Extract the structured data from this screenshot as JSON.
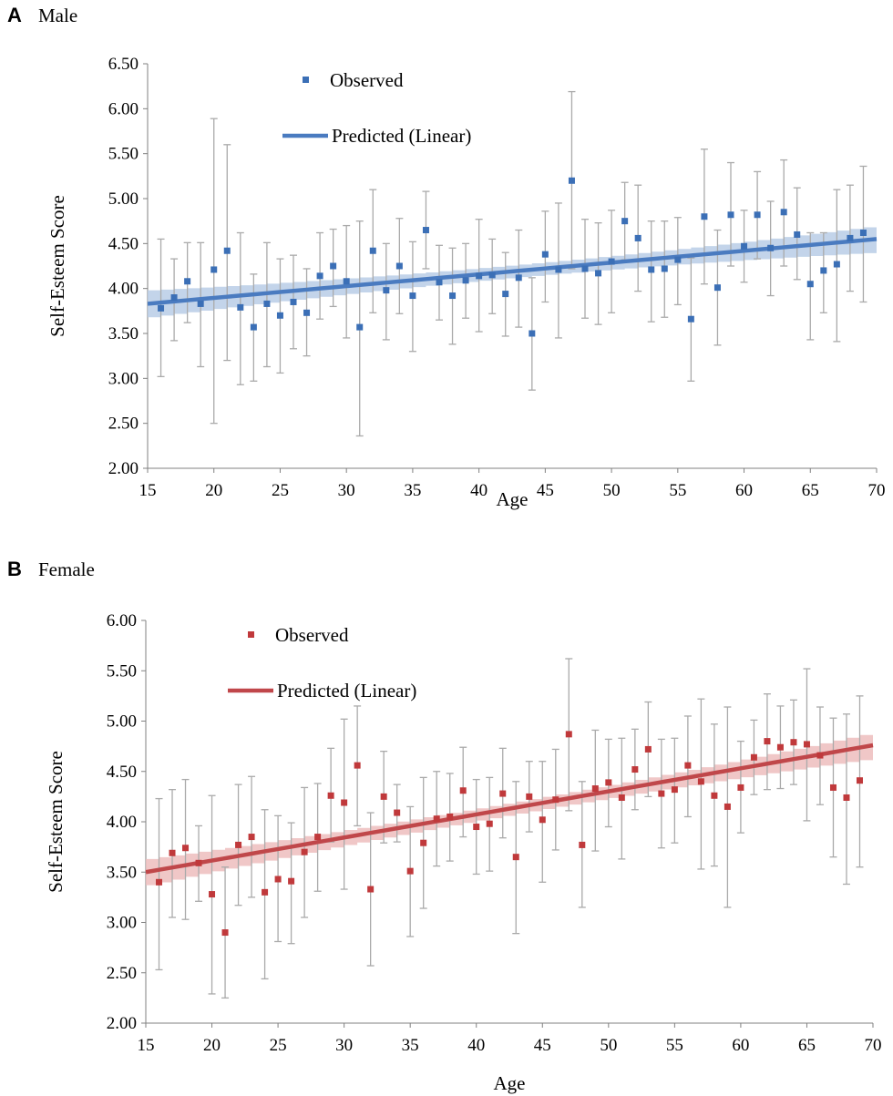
{
  "chart_data": [
    {
      "type": "scatter",
      "panel_letter": "A",
      "title": "Male",
      "xlabel": "Age",
      "ylabel": "Self-Esteem Score",
      "xlim": [
        15,
        70
      ],
      "ylim": [
        2.0,
        6.5
      ],
      "xticks": [
        "15",
        "20",
        "25",
        "30",
        "35",
        "40",
        "45",
        "50",
        "55",
        "60",
        "65",
        "70"
      ],
      "yticks": [
        "2.00",
        "2.50",
        "3.00",
        "3.50",
        "4.00",
        "4.50",
        "5.00",
        "5.50",
        "6.00",
        "6.50"
      ],
      "legend": {
        "observed": "Observed",
        "predicted": "Predicted (Linear)",
        "placement": "top-left"
      },
      "colors": {
        "point": "#3B6FB6",
        "line": "#4A7BC0",
        "band": "#B9CDE6",
        "error": "#AAAAAA"
      },
      "predicted": {
        "x": [
          15,
          70
        ],
        "y": [
          3.83,
          4.55
        ],
        "ci_halfwidth_ends": 0.15,
        "ci_halfwidth_mid": 0.07
      },
      "observed": {
        "x": [
          16,
          17,
          18,
          19,
          20,
          21,
          22,
          23,
          24,
          25,
          26,
          27,
          28,
          29,
          30,
          31,
          32,
          33,
          34,
          35,
          36,
          37,
          38,
          39,
          40,
          41,
          42,
          43,
          44,
          45,
          46,
          47,
          48,
          49,
          50,
          51,
          52,
          53,
          54,
          55,
          56,
          57,
          58,
          59,
          60,
          61,
          62,
          63,
          64,
          65,
          66,
          67,
          68,
          69
        ],
        "y": [
          3.78,
          3.9,
          4.08,
          3.83,
          4.21,
          4.42,
          3.79,
          3.57,
          3.83,
          3.7,
          3.85,
          3.73,
          4.14,
          4.25,
          4.08,
          3.57,
          4.42,
          3.98,
          4.25,
          3.92,
          4.65,
          4.07,
          3.92,
          4.09,
          4.14,
          4.15,
          3.94,
          4.12,
          3.5,
          4.38,
          4.21,
          5.2,
          4.22,
          4.17,
          4.3,
          4.75,
          4.56,
          4.21,
          4.22,
          4.32,
          3.66,
          4.8,
          4.01,
          4.82,
          4.47,
          4.82,
          4.45,
          4.85,
          4.6,
          4.05,
          4.2,
          4.27,
          4.56,
          4.62
        ],
        "lower": [
          3.02,
          3.42,
          3.62,
          3.13,
          2.5,
          3.2,
          2.93,
          2.97,
          3.13,
          3.06,
          3.33,
          3.25,
          3.66,
          3.8,
          3.45,
          2.36,
          3.73,
          3.43,
          3.72,
          3.3,
          4.22,
          3.65,
          3.38,
          3.67,
          3.52,
          3.72,
          3.47,
          3.57,
          2.87,
          3.85,
          3.45,
          4.22,
          3.67,
          3.6,
          3.73,
          4.32,
          3.97,
          3.63,
          3.68,
          3.82,
          2.97,
          4.05,
          3.37,
          4.25,
          4.07,
          4.33,
          3.92,
          4.25,
          4.1,
          3.43,
          3.73,
          3.41,
          3.97,
          3.85
        ],
        "upper": [
          4.55,
          4.33,
          4.51,
          4.51,
          5.89,
          5.6,
          4.62,
          4.16,
          4.51,
          4.33,
          4.37,
          4.22,
          4.62,
          4.66,
          4.7,
          4.75,
          5.1,
          4.5,
          4.78,
          4.52,
          5.08,
          4.48,
          4.45,
          4.5,
          4.77,
          4.55,
          4.4,
          4.65,
          4.12,
          4.86,
          4.95,
          6.19,
          4.77,
          4.73,
          4.87,
          5.18,
          5.15,
          4.75,
          4.75,
          4.79,
          4.34,
          5.55,
          4.65,
          5.4,
          4.87,
          5.3,
          4.97,
          5.43,
          5.12,
          4.62,
          4.62,
          5.1,
          5.15,
          5.36
        ]
      }
    },
    {
      "type": "scatter",
      "panel_letter": "B",
      "title": "Female",
      "xlabel": "Age",
      "ylabel": "Self-Esteem Score",
      "xlim": [
        15,
        70
      ],
      "ylim": [
        2.0,
        6.0
      ],
      "xticks": [
        "15",
        "20",
        "25",
        "30",
        "35",
        "40",
        "45",
        "50",
        "55",
        "60",
        "65",
        "70"
      ],
      "yticks": [
        "2.00",
        "2.50",
        "3.00",
        "3.50",
        "4.00",
        "4.50",
        "5.00",
        "5.50",
        "6.00"
      ],
      "legend": {
        "observed": "Observed",
        "predicted": "Predicted (Linear)",
        "placement": "top-left"
      },
      "colors": {
        "point": "#C0393B",
        "line": "#C0474A",
        "band": "#EDBDBD",
        "error": "#AAAAAA"
      },
      "predicted": {
        "x": [
          15,
          70
        ],
        "y": [
          3.5,
          4.76
        ],
        "ci_halfwidth_ends": 0.13,
        "ci_halfwidth_mid": 0.06
      },
      "observed": {
        "x": [
          16,
          17,
          18,
          19,
          20,
          21,
          22,
          23,
          24,
          25,
          26,
          27,
          28,
          29,
          30,
          31,
          32,
          33,
          34,
          35,
          36,
          37,
          38,
          39,
          40,
          41,
          42,
          43,
          44,
          45,
          46,
          47,
          48,
          49,
          50,
          51,
          52,
          53,
          54,
          55,
          56,
          57,
          58,
          59,
          60,
          61,
          62,
          63,
          64,
          65,
          66,
          67,
          68,
          69
        ],
        "y": [
          3.4,
          3.69,
          3.74,
          3.59,
          3.28,
          2.9,
          3.77,
          3.85,
          3.3,
          3.43,
          3.41,
          3.7,
          3.85,
          4.26,
          4.19,
          4.56,
          3.33,
          4.25,
          4.09,
          3.51,
          3.79,
          4.03,
          4.05,
          4.31,
          3.95,
          3.98,
          4.28,
          3.65,
          4.25,
          4.02,
          4.22,
          4.87,
          3.77,
          4.33,
          4.39,
          4.24,
          4.52,
          4.72,
          4.28,
          4.32,
          4.56,
          4.4,
          4.26,
          4.15,
          4.34,
          4.64,
          4.8,
          4.74,
          4.79,
          4.77,
          4.66,
          4.34,
          4.24,
          4.41
        ],
        "lower": [
          2.53,
          3.05,
          3.03,
          3.21,
          2.29,
          2.25,
          3.17,
          3.25,
          2.44,
          2.81,
          2.79,
          3.05,
          3.31,
          3.8,
          3.33,
          3.96,
          2.57,
          3.79,
          3.8,
          2.86,
          3.14,
          3.56,
          3.61,
          3.85,
          3.48,
          3.51,
          3.84,
          2.89,
          3.9,
          3.4,
          3.72,
          4.11,
          3.15,
          3.71,
          3.95,
          3.63,
          4.12,
          4.25,
          3.74,
          3.79,
          4.05,
          3.53,
          3.56,
          3.15,
          3.89,
          4.27,
          4.32,
          4.33,
          4.37,
          4.01,
          4.17,
          3.65,
          3.38,
          3.55
        ],
        "upper": [
          4.23,
          4.32,
          4.42,
          3.96,
          4.26,
          3.55,
          4.37,
          4.45,
          4.12,
          4.06,
          3.99,
          4.34,
          4.38,
          4.73,
          5.02,
          5.15,
          4.09,
          4.7,
          4.37,
          4.15,
          4.44,
          4.5,
          4.48,
          4.74,
          4.42,
          4.44,
          4.73,
          4.4,
          4.6,
          4.6,
          4.72,
          5.62,
          4.4,
          4.91,
          4.82,
          4.83,
          4.92,
          5.19,
          4.82,
          4.83,
          5.05,
          5.22,
          4.97,
          5.14,
          4.8,
          5.01,
          5.27,
          5.15,
          5.21,
          5.52,
          5.14,
          5.03,
          5.07,
          5.25
        ]
      }
    }
  ]
}
